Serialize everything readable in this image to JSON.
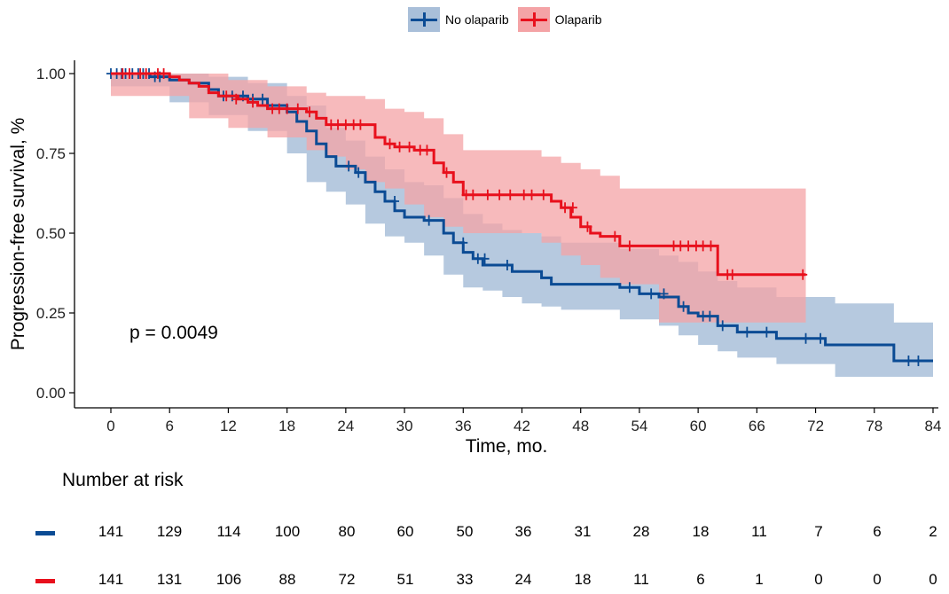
{
  "chart_data": {
    "type": "line",
    "subtype": "kaplan-meier",
    "xlabel": "Time, mo.",
    "ylabel": "Progression-free survival, %",
    "xlim": [
      0,
      84
    ],
    "ylim": [
      0,
      1
    ],
    "x_ticks": [
      "0",
      "6",
      "12",
      "18",
      "24",
      "30",
      "36",
      "42",
      "48",
      "54",
      "60",
      "66",
      "72",
      "78",
      "84"
    ],
    "y_ticks": [
      "0.00",
      "0.25",
      "0.50",
      "0.75",
      "1.00"
    ],
    "grid": false,
    "legend_position": "top",
    "annotation": "p = 0.0049",
    "series": [
      {
        "name": "No olaparib",
        "color": "#0b4b94",
        "band_color": "#a9bfd9",
        "steps": [
          [
            0,
            1
          ],
          [
            4,
            0.99
          ],
          [
            6,
            0.98
          ],
          [
            8,
            0.97
          ],
          [
            10,
            0.95
          ],
          [
            11,
            0.93
          ],
          [
            14,
            0.92
          ],
          [
            16,
            0.9
          ],
          [
            18,
            0.88
          ],
          [
            19,
            0.85
          ],
          [
            20,
            0.82
          ],
          [
            21,
            0.78
          ],
          [
            22,
            0.74
          ],
          [
            23,
            0.71
          ],
          [
            25,
            0.69
          ],
          [
            26,
            0.66
          ],
          [
            27,
            0.63
          ],
          [
            28,
            0.6
          ],
          [
            29,
            0.57
          ],
          [
            30,
            0.55
          ],
          [
            32,
            0.54
          ],
          [
            34,
            0.5
          ],
          [
            35,
            0.47
          ],
          [
            36,
            0.44
          ],
          [
            37,
            0.42
          ],
          [
            38,
            0.4
          ],
          [
            41,
            0.38
          ],
          [
            44,
            0.36
          ],
          [
            45,
            0.34
          ],
          [
            50,
            0.34
          ],
          [
            52,
            0.33
          ],
          [
            54,
            0.31
          ],
          [
            56,
            0.3
          ],
          [
            58,
            0.27
          ],
          [
            59,
            0.25
          ],
          [
            60,
            0.24
          ],
          [
            62,
            0.21
          ],
          [
            64,
            0.19
          ],
          [
            68,
            0.17
          ],
          [
            73,
            0.15
          ],
          [
            80,
            0.1
          ],
          [
            84,
            0.1
          ]
        ],
        "ci_lower": [
          [
            0,
            1
          ],
          [
            6,
            0.96
          ],
          [
            10,
            0.91
          ],
          [
            14,
            0.87
          ],
          [
            18,
            0.82
          ],
          [
            20,
            0.75
          ],
          [
            22,
            0.66
          ],
          [
            24,
            0.63
          ],
          [
            26,
            0.59
          ],
          [
            28,
            0.53
          ],
          [
            30,
            0.49
          ],
          [
            32,
            0.47
          ],
          [
            34,
            0.43
          ],
          [
            36,
            0.37
          ],
          [
            38,
            0.33
          ],
          [
            40,
            0.32
          ],
          [
            42,
            0.3
          ],
          [
            44,
            0.28
          ],
          [
            46,
            0.27
          ],
          [
            52,
            0.26
          ],
          [
            56,
            0.23
          ],
          [
            58,
            0.21
          ],
          [
            60,
            0.18
          ],
          [
            62,
            0.15
          ],
          [
            64,
            0.13
          ],
          [
            68,
            0.11
          ],
          [
            74,
            0.09
          ],
          [
            80,
            0.05
          ],
          [
            84,
            0.05
          ]
        ],
        "ci_upper": [
          [
            0,
            1
          ],
          [
            6,
            1
          ],
          [
            10,
            0.99
          ],
          [
            14,
            0.97
          ],
          [
            18,
            0.93
          ],
          [
            20,
            0.9
          ],
          [
            22,
            0.83
          ],
          [
            24,
            0.79
          ],
          [
            26,
            0.74
          ],
          [
            28,
            0.7
          ],
          [
            30,
            0.66
          ],
          [
            32,
            0.65
          ],
          [
            34,
            0.61
          ],
          [
            36,
            0.56
          ],
          [
            38,
            0.53
          ],
          [
            40,
            0.51
          ],
          [
            42,
            0.5
          ],
          [
            44,
            0.49
          ],
          [
            46,
            0.47
          ],
          [
            52,
            0.45
          ],
          [
            56,
            0.43
          ],
          [
            58,
            0.41
          ],
          [
            60,
            0.38
          ],
          [
            62,
            0.35
          ],
          [
            64,
            0.33
          ],
          [
            68,
            0.3
          ],
          [
            74,
            0.28
          ],
          [
            80,
            0.22
          ],
          [
            84,
            0.22
          ]
        ],
        "censored": [
          [
            0,
            1
          ],
          [
            0.6,
            1
          ],
          [
            1.1,
            1
          ],
          [
            1.5,
            1
          ],
          [
            2.2,
            1
          ],
          [
            2.8,
            1
          ],
          [
            3.3,
            1
          ],
          [
            3.9,
            1
          ],
          [
            4.5,
            0.99
          ],
          [
            5,
            0.99
          ],
          [
            11.5,
            0.93
          ],
          [
            12.4,
            0.93
          ],
          [
            13.5,
            0.93
          ],
          [
            14.5,
            0.92
          ],
          [
            15.5,
            0.92
          ],
          [
            24.3,
            0.71
          ],
          [
            25.3,
            0.69
          ],
          [
            29,
            0.6
          ],
          [
            32.5,
            0.54
          ],
          [
            36,
            0.47
          ],
          [
            37.5,
            0.42
          ],
          [
            38.2,
            0.42
          ],
          [
            40.5,
            0.4
          ],
          [
            53,
            0.33
          ],
          [
            55.2,
            0.31
          ],
          [
            56.5,
            0.31
          ],
          [
            58.5,
            0.27
          ],
          [
            60.5,
            0.24
          ],
          [
            61.2,
            0.24
          ],
          [
            62.5,
            0.21
          ],
          [
            65,
            0.19
          ],
          [
            67,
            0.19
          ],
          [
            71,
            0.17
          ],
          [
            72.5,
            0.17
          ],
          [
            81.5,
            0.1
          ],
          [
            82.5,
            0.1
          ]
        ]
      },
      {
        "name": "Olaparib",
        "color": "#e8101c",
        "band_color": "#f4a3a6",
        "steps": [
          [
            0,
            1
          ],
          [
            6,
            0.99
          ],
          [
            7,
            0.98
          ],
          [
            8,
            0.97
          ],
          [
            9,
            0.96
          ],
          [
            10,
            0.94
          ],
          [
            11,
            0.93
          ],
          [
            13,
            0.92
          ],
          [
            14,
            0.91
          ],
          [
            15,
            0.9
          ],
          [
            16,
            0.89
          ],
          [
            20,
            0.88
          ],
          [
            21,
            0.86
          ],
          [
            22,
            0.84
          ],
          [
            27,
            0.8
          ],
          [
            28,
            0.78
          ],
          [
            29,
            0.77
          ],
          [
            31,
            0.76
          ],
          [
            33,
            0.72
          ],
          [
            34,
            0.69
          ],
          [
            35,
            0.66
          ],
          [
            36,
            0.62
          ],
          [
            45,
            0.6
          ],
          [
            46,
            0.58
          ],
          [
            47,
            0.55
          ],
          [
            48,
            0.52
          ],
          [
            49,
            0.5
          ],
          [
            50,
            0.49
          ],
          [
            52,
            0.46
          ],
          [
            62,
            0.37
          ],
          [
            71,
            0.37
          ]
        ],
        "ci_lower": [
          [
            0,
            1
          ],
          [
            8,
            0.93
          ],
          [
            12,
            0.86
          ],
          [
            16,
            0.83
          ],
          [
            20,
            0.8
          ],
          [
            22,
            0.76
          ],
          [
            24,
            0.74
          ],
          [
            26,
            0.7
          ],
          [
            28,
            0.66
          ],
          [
            30,
            0.64
          ],
          [
            32,
            0.59
          ],
          [
            34,
            0.55
          ],
          [
            36,
            0.52
          ],
          [
            44,
            0.5
          ],
          [
            46,
            0.47
          ],
          [
            48,
            0.43
          ],
          [
            50,
            0.4
          ],
          [
            52,
            0.36
          ],
          [
            56,
            0.34
          ],
          [
            62,
            0.22
          ],
          [
            71,
            0.22
          ]
        ],
        "ci_upper": [
          [
            0,
            1
          ],
          [
            8,
            1
          ],
          [
            12,
            0.98
          ],
          [
            16,
            0.96
          ],
          [
            20,
            0.94
          ],
          [
            22,
            0.93
          ],
          [
            26,
            0.92
          ],
          [
            28,
            0.89
          ],
          [
            30,
            0.88
          ],
          [
            32,
            0.86
          ],
          [
            34,
            0.81
          ],
          [
            36,
            0.76
          ],
          [
            44,
            0.74
          ],
          [
            46,
            0.72
          ],
          [
            48,
            0.7
          ],
          [
            50,
            0.68
          ],
          [
            52,
            0.64
          ],
          [
            62,
            0.64
          ],
          [
            71,
            0.64
          ]
        ],
        "censored": [
          [
            1.2,
            1
          ],
          [
            1.9,
            1
          ],
          [
            3,
            1
          ],
          [
            3.6,
            1
          ],
          [
            4.8,
            1
          ],
          [
            5.4,
            1
          ],
          [
            11.8,
            0.93
          ],
          [
            12.8,
            0.92
          ],
          [
            14.5,
            0.91
          ],
          [
            16.5,
            0.89
          ],
          [
            17.2,
            0.89
          ],
          [
            18,
            0.89
          ],
          [
            19.1,
            0.89
          ],
          [
            20.3,
            0.88
          ],
          [
            22.5,
            0.84
          ],
          [
            23.2,
            0.84
          ],
          [
            24,
            0.84
          ],
          [
            24.8,
            0.84
          ],
          [
            25.5,
            0.84
          ],
          [
            28.5,
            0.78
          ],
          [
            29.5,
            0.77
          ],
          [
            30.5,
            0.77
          ],
          [
            31.6,
            0.76
          ],
          [
            32.3,
            0.76
          ],
          [
            34.3,
            0.69
          ],
          [
            36.3,
            0.62
          ],
          [
            37,
            0.62
          ],
          [
            38.5,
            0.62
          ],
          [
            39.7,
            0.62
          ],
          [
            40.8,
            0.62
          ],
          [
            42.2,
            0.62
          ],
          [
            43,
            0.62
          ],
          [
            44.2,
            0.62
          ],
          [
            46.4,
            0.58
          ],
          [
            47.2,
            0.58
          ],
          [
            48.7,
            0.52
          ],
          [
            51.5,
            0.49
          ],
          [
            53,
            0.46
          ],
          [
            57.5,
            0.46
          ],
          [
            58.2,
            0.46
          ],
          [
            59,
            0.46
          ],
          [
            59.8,
            0.46
          ],
          [
            60.5,
            0.46
          ],
          [
            61.3,
            0.46
          ],
          [
            63,
            0.37
          ],
          [
            63.5,
            0.37
          ],
          [
            70.7,
            0.37
          ]
        ]
      }
    ]
  },
  "risk_table": {
    "title": "Number at risk",
    "times": [
      0,
      6,
      12,
      18,
      24,
      30,
      36,
      42,
      48,
      54,
      60,
      66,
      72,
      78,
      84
    ],
    "rows": [
      {
        "name": "No olaparib",
        "color": "#0b4b94",
        "values": [
          "141",
          "129",
          "114",
          "100",
          "80",
          "60",
          "50",
          "36",
          "31",
          "28",
          "18",
          "11",
          "7",
          "6",
          "2"
        ]
      },
      {
        "name": "Olaparib",
        "color": "#e8101c",
        "values": [
          "141",
          "131",
          "106",
          "88",
          "72",
          "51",
          "33",
          "24",
          "18",
          "11",
          "6",
          "1",
          "0",
          "0",
          "0"
        ]
      }
    ]
  }
}
